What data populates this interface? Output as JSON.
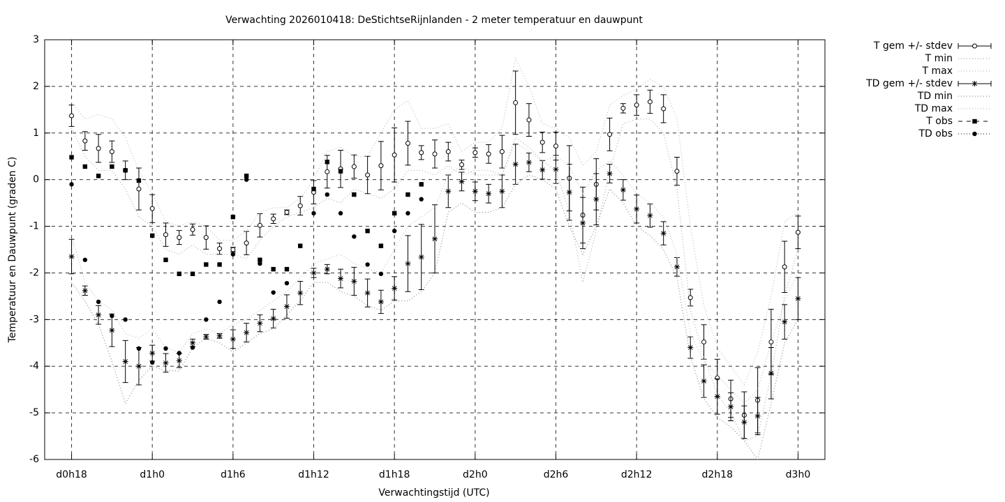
{
  "chart_data": {
    "type": "errorbar",
    "title": "Verwachting 2026010418: DeStichtseRijnlanden - 2 meter temperatuur en dauwpunt",
    "xlabel": "Verwachtingstijd (UTC)",
    "ylabel": "Temperatuur en Dauwpunt (graden C)",
    "x": [
      0,
      1,
      2,
      3,
      4,
      5,
      6,
      7,
      8,
      9,
      10,
      11,
      12,
      13,
      14,
      15,
      16,
      17,
      18,
      19,
      20,
      21,
      22,
      23,
      24,
      25,
      26,
      27,
      28,
      29,
      30,
      31,
      32,
      33,
      34,
      35,
      36,
      37,
      38,
      39,
      40,
      41,
      42,
      43,
      44,
      45,
      46,
      47,
      48,
      49,
      50,
      51,
      52,
      53,
      54
    ],
    "xlim": [
      -2,
      56
    ],
    "xticks": [
      {
        "value": 0,
        "label": "d0h18"
      },
      {
        "value": 6,
        "label": "d1h0"
      },
      {
        "value": 12,
        "label": "d1h6"
      },
      {
        "value": 18,
        "label": "d1h12"
      },
      {
        "value": 24,
        "label": "d1h18"
      },
      {
        "value": 30,
        "label": "d2h0"
      },
      {
        "value": 36,
        "label": "d2h6"
      },
      {
        "value": 42,
        "label": "d2h12"
      },
      {
        "value": 48,
        "label": "d2h18"
      },
      {
        "value": 54,
        "label": "d3h0"
      }
    ],
    "ylim": [
      -6,
      3
    ],
    "yticks": [
      -6,
      -5,
      -4,
      -3,
      -2,
      -1,
      0,
      1,
      2,
      3
    ],
    "grid": true,
    "legend": "outside-right-top",
    "series": [
      {
        "name": "T gem +/- stdev",
        "style": "errorbar",
        "marker": "open-circle",
        "color": "#000000",
        "values": [
          1.37,
          0.83,
          0.67,
          0.6,
          0.2,
          -0.2,
          -0.62,
          -1.18,
          -1.24,
          -1.07,
          -1.24,
          -1.48,
          -1.5,
          -1.36,
          -0.98,
          -0.84,
          -0.7,
          -0.56,
          -0.27,
          0.17,
          0.23,
          0.28,
          0.1,
          0.3,
          0.53,
          0.78,
          0.58,
          0.55,
          0.6,
          0.32,
          0.58,
          0.55,
          0.6,
          1.65,
          1.28,
          0.8,
          0.72,
          0.03,
          -0.76,
          -0.1,
          0.97,
          1.53,
          1.6,
          1.67,
          1.52,
          0.18,
          -2.53,
          -3.48,
          -4.25,
          -4.7,
          -5.05,
          -4.73,
          -3.48,
          -1.87,
          -1.13
        ],
        "errors": [
          0.23,
          0.2,
          0.3,
          0.23,
          0.2,
          0.45,
          0.3,
          0.25,
          0.15,
          0.12,
          0.25,
          0.12,
          0.05,
          0.25,
          0.25,
          0.1,
          0.05,
          0.2,
          0.25,
          0.35,
          0.4,
          0.25,
          0.4,
          0.52,
          0.58,
          0.47,
          0.15,
          0.3,
          0.2,
          0.1,
          0.1,
          0.2,
          0.35,
          0.68,
          0.35,
          0.22,
          0.3,
          0.7,
          0.6,
          0.55,
          0.35,
          0.1,
          0.22,
          0.25,
          0.3,
          0.3,
          0.18,
          0.37,
          0.4,
          0.4,
          0.5,
          0.7,
          0.7,
          0.55,
          0.35
        ]
      },
      {
        "name": "T min",
        "style": "dotted",
        "color": "#aaaaaa",
        "values": [
          1.1,
          0.5,
          0.2,
          0.2,
          -0.2,
          -0.8,
          -1.0,
          -1.5,
          -1.6,
          -1.4,
          -1.6,
          -1.6,
          -1.6,
          -1.7,
          -1.3,
          -1.0,
          -0.8,
          -0.7,
          -0.6,
          -0.4,
          -0.5,
          -0.2,
          -0.3,
          -0.4,
          -0.2,
          0.2,
          0.2,
          0.1,
          0.3,
          0.1,
          0.2,
          0.2,
          0.1,
          0.9,
          0.7,
          0.4,
          0.2,
          -0.7,
          -2.2,
          -1.1,
          0.2,
          1.2,
          1.3,
          1.3,
          1.0,
          -0.2,
          -2.8,
          -3.8,
          -4.6,
          -5.0,
          -5.6,
          -5.5,
          -4.2,
          -2.5,
          -1.5
        ]
      },
      {
        "name": "T max",
        "style": "dotted",
        "color": "#bbbbbb",
        "values": [
          1.65,
          1.3,
          1.4,
          1.3,
          0.9,
          0.2,
          -0.3,
          -0.9,
          -1.0,
          -0.9,
          -1.0,
          -1.3,
          -1.3,
          -1.1,
          -0.7,
          -0.6,
          -0.6,
          -0.4,
          0.0,
          0.6,
          0.7,
          0.5,
          0.5,
          1.0,
          1.5,
          1.7,
          1.1,
          1.1,
          1.2,
          0.6,
          0.8,
          0.8,
          1.1,
          2.6,
          2.0,
          1.2,
          1.1,
          0.9,
          0.3,
          0.6,
          1.6,
          1.8,
          1.95,
          2.15,
          2.0,
          1.3,
          -1.0,
          -2.7,
          -3.6,
          -4.0,
          -4.4,
          -3.7,
          -2.5,
          -0.9,
          -0.7
        ]
      },
      {
        "name": "TD gem +/- stdev",
        "style": "errorbar",
        "marker": "star",
        "color": "#000000",
        "values": [
          -1.65,
          -2.38,
          -2.9,
          -3.23,
          -3.9,
          -4.0,
          -3.72,
          -3.93,
          -3.88,
          -3.5,
          -3.37,
          -3.35,
          -3.42,
          -3.28,
          -3.08,
          -2.98,
          -2.72,
          -2.43,
          -2.0,
          -1.92,
          -2.12,
          -2.18,
          -2.43,
          -2.62,
          -2.33,
          -1.8,
          -1.66,
          -1.27,
          -0.25,
          -0.04,
          -0.25,
          -0.3,
          -0.25,
          0.33,
          0.37,
          0.21,
          0.22,
          -0.27,
          -0.93,
          -0.42,
          0.13,
          -0.22,
          -0.63,
          -0.77,
          -1.15,
          -1.87,
          -3.6,
          -4.32,
          -4.65,
          -4.87,
          -5.2,
          -5.07,
          -4.15,
          -3.05,
          -2.55
        ],
        "errors": [
          0.37,
          0.1,
          0.2,
          0.35,
          0.45,
          0.4,
          0.17,
          0.2,
          0.15,
          0.08,
          0.05,
          0.05,
          0.2,
          0.2,
          0.18,
          0.2,
          0.25,
          0.25,
          0.1,
          0.1,
          0.2,
          0.3,
          0.3,
          0.25,
          0.25,
          0.6,
          0.7,
          0.73,
          0.35,
          0.2,
          0.2,
          0.2,
          0.35,
          0.43,
          0.2,
          0.2,
          0.3,
          0.6,
          0.55,
          0.55,
          0.2,
          0.22,
          0.3,
          0.25,
          0.25,
          0.2,
          0.23,
          0.35,
          0.38,
          0.3,
          0.35,
          0.4,
          0.55,
          0.37,
          0.45
        ]
      },
      {
        "name": "TD min",
        "style": "dotted",
        "color": "#888888",
        "values": [
          -2.2,
          -2.6,
          -3.1,
          -3.9,
          -4.8,
          -4.3,
          -4.0,
          -4.1,
          -4.1,
          -3.6,
          -3.4,
          -3.5,
          -3.7,
          -3.5,
          -3.3,
          -3.2,
          -2.9,
          -2.6,
          -2.2,
          -2.2,
          -2.4,
          -2.5,
          -2.7,
          -2.8,
          -2.6,
          -2.6,
          -2.4,
          -2.0,
          -0.7,
          -0.5,
          -0.7,
          -0.7,
          -0.6,
          -0.1,
          0.1,
          0.0,
          -0.2,
          -1.0,
          -1.6,
          -1.0,
          -0.2,
          -0.5,
          -1.0,
          -1.2,
          -1.5,
          -2.1,
          -3.8,
          -4.7,
          -5.1,
          -5.3,
          -5.6,
          -6.0,
          -4.8,
          -3.5,
          -3.0
        ]
      },
      {
        "name": "TD max",
        "style": "dotted",
        "color": "#bbbbbb",
        "values": [
          -1.2,
          -2.2,
          -2.6,
          -2.8,
          -3.3,
          -3.4,
          -3.2,
          -3.6,
          -3.7,
          -3.3,
          -3.2,
          -3.3,
          -3.1,
          -3.0,
          -2.8,
          -2.6,
          -2.4,
          -2.1,
          -1.8,
          -1.7,
          -1.6,
          -1.8,
          -1.9,
          -2.0,
          -1.5,
          -1.0,
          -0.8,
          -0.6,
          0.1,
          0.3,
          0.1,
          0.1,
          0.1,
          0.8,
          0.6,
          0.4,
          0.5,
          0.3,
          -0.3,
          0.2,
          0.4,
          0.1,
          -0.3,
          -0.5,
          -0.8,
          -1.6,
          -3.3,
          -3.9,
          -4.2,
          -4.5,
          -4.8,
          -4.5,
          -3.5,
          -2.6,
          -2.0
        ]
      },
      {
        "name": "T obs",
        "style": "points",
        "marker": "square",
        "color": "#000000",
        "values": [
          0.48,
          0.28,
          0.08,
          0.28,
          0.2,
          -0.02,
          -1.2,
          -1.72,
          -2.02,
          -2.02,
          -1.82,
          -1.82,
          -0.8,
          0.08,
          -1.72,
          -1.92,
          -1.92,
          -1.42,
          -0.2,
          0.38,
          0.18,
          -0.32,
          -1.1,
          -1.42,
          -0.72,
          -0.32,
          -0.1,
          null,
          null,
          null,
          null,
          null,
          null,
          null,
          null,
          null,
          null,
          null,
          null,
          null,
          null,
          null,
          null,
          null,
          null,
          null,
          null,
          null,
          null,
          null,
          null,
          null,
          null,
          null,
          null
        ]
      },
      {
        "name": "TD obs",
        "style": "points",
        "marker": "circle",
        "color": "#000000",
        "values": [
          -0.1,
          -1.72,
          -2.62,
          -2.92,
          -3.0,
          -3.62,
          -3.92,
          -3.62,
          -3.72,
          -3.6,
          -3.0,
          -2.62,
          -1.6,
          0.0,
          -1.8,
          -2.42,
          -2.22,
          -1.42,
          -0.72,
          -0.32,
          -0.72,
          -1.22,
          -1.82,
          -2.02,
          -1.1,
          -0.72,
          -0.42,
          null,
          null,
          null,
          null,
          null,
          null,
          null,
          null,
          null,
          null,
          null,
          null,
          null,
          null,
          null,
          null,
          null,
          null,
          null,
          null,
          null,
          null,
          null,
          null,
          null,
          null,
          null,
          null
        ]
      }
    ]
  }
}
